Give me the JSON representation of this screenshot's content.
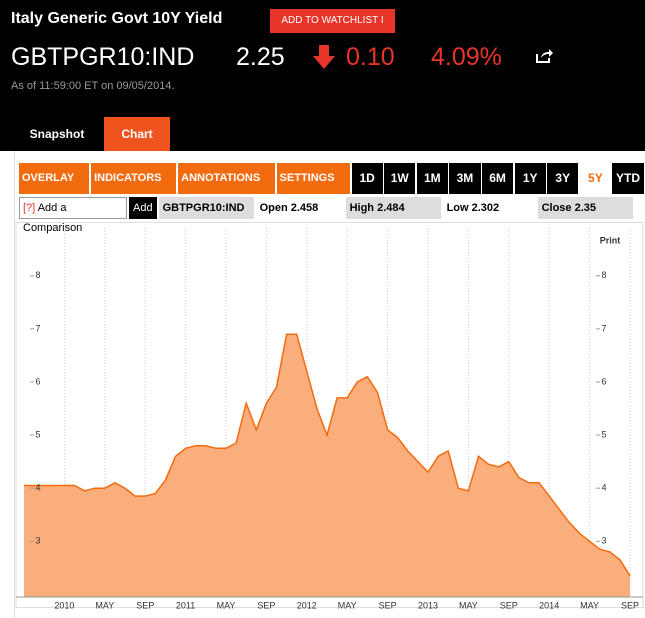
{
  "header": {
    "title": "Italy Generic Govt 10Y Yield",
    "watchlist_button": "ADD TO WATCHLIST I",
    "ticker": "GBTPGR10:IND",
    "price": "2.25",
    "change": "0.10",
    "change_percent": "4.09%",
    "as_of": "As of 11:59:00 ET on 09/05/2014."
  },
  "tabs": [
    "Snapshot",
    "Chart"
  ],
  "toolbar": {
    "menus": [
      "OVERLAY ▼",
      "INDICATORS ▼",
      "ANNOTATIONS ▼",
      "SETTINGS ▼"
    ],
    "ranges": [
      "1D",
      "1W",
      "1M",
      "3M",
      "6M",
      "1Y",
      "3Y",
      "5Y",
      "YTD"
    ],
    "active_range": 7
  },
  "quote_row": {
    "help": "[?]",
    "comparison": "Add a Comparison",
    "add_button": "Add",
    "symbol": "GBTPGR10:IND",
    "open": "Open 2.458",
    "high": "High 2.484",
    "low": "Low 2.302",
    "close": "Close 2.35"
  },
  "chart_data": {
    "type": "area",
    "print_label": "Print",
    "color": "#f9ae7c",
    "line_color": "#f26b0f",
    "x": [
      "2009-09",
      "2009-10",
      "2009-11",
      "2009-12",
      "2010-01",
      "2010-02",
      "2010-03",
      "2010-04",
      "2010-05",
      "2010-06",
      "2010-07",
      "2010-08",
      "2010-09",
      "2010-10",
      "2010-11",
      "2010-12",
      "2011-01",
      "2011-02",
      "2011-03",
      "2011-04",
      "2011-05",
      "2011-06",
      "2011-07",
      "2011-08",
      "2011-09",
      "2011-10",
      "2011-11",
      "2011-12",
      "2012-01",
      "2012-02",
      "2012-03",
      "2012-04",
      "2012-05",
      "2012-06",
      "2012-07",
      "2012-08",
      "2012-09",
      "2012-10",
      "2012-11",
      "2012-12",
      "2013-01",
      "2013-02",
      "2013-03",
      "2013-04",
      "2013-05",
      "2013-06",
      "2013-07",
      "2013-08",
      "2013-09",
      "2013-10",
      "2013-11",
      "2013-12",
      "2014-01",
      "2014-02",
      "2014-03",
      "2014-04",
      "2014-05",
      "2014-06",
      "2014-07",
      "2014-08",
      "2014-09"
    ],
    "values": [
      4.05,
      4.05,
      4.05,
      4.05,
      4.05,
      4.05,
      3.95,
      4.0,
      4.0,
      4.1,
      4.0,
      3.85,
      3.85,
      3.9,
      4.15,
      4.6,
      4.75,
      4.8,
      4.8,
      4.75,
      4.75,
      4.85,
      5.6,
      5.1,
      5.6,
      5.9,
      6.9,
      6.9,
      6.2,
      5.5,
      5.0,
      5.7,
      5.7,
      6.0,
      6.1,
      5.8,
      5.1,
      4.95,
      4.7,
      4.5,
      4.3,
      4.6,
      4.7,
      4.0,
      3.95,
      4.6,
      4.45,
      4.4,
      4.5,
      4.2,
      4.1,
      4.1,
      3.85,
      3.6,
      3.35,
      3.15,
      3.0,
      2.85,
      2.8,
      2.65,
      2.35
    ],
    "xlim": [
      "2009-09",
      "2014-09"
    ],
    "xticks": [
      {
        "value": "2010-01",
        "label": "2010"
      },
      {
        "value": "2010-05",
        "label": "MAY"
      },
      {
        "value": "2010-09",
        "label": "SEP"
      },
      {
        "value": "2011-01",
        "label": "2011"
      },
      {
        "value": "2011-05",
        "label": "MAY"
      },
      {
        "value": "2011-09",
        "label": "SEP"
      },
      {
        "value": "2012-01",
        "label": "2012"
      },
      {
        "value": "2012-05",
        "label": "MAY"
      },
      {
        "value": "2012-09",
        "label": "SEP"
      },
      {
        "value": "2013-01",
        "label": "2013"
      },
      {
        "value": "2013-05",
        "label": "MAY"
      },
      {
        "value": "2013-09",
        "label": "SEP"
      },
      {
        "value": "2014-01",
        "label": "2014"
      },
      {
        "value": "2014-05",
        "label": "MAY"
      },
      {
        "value": "2014-09",
        "label": "SEP"
      }
    ],
    "ylim": [
      1.95,
      8.9
    ],
    "yticks": [
      3,
      4,
      5,
      6,
      7,
      8
    ],
    "grid": "x"
  }
}
